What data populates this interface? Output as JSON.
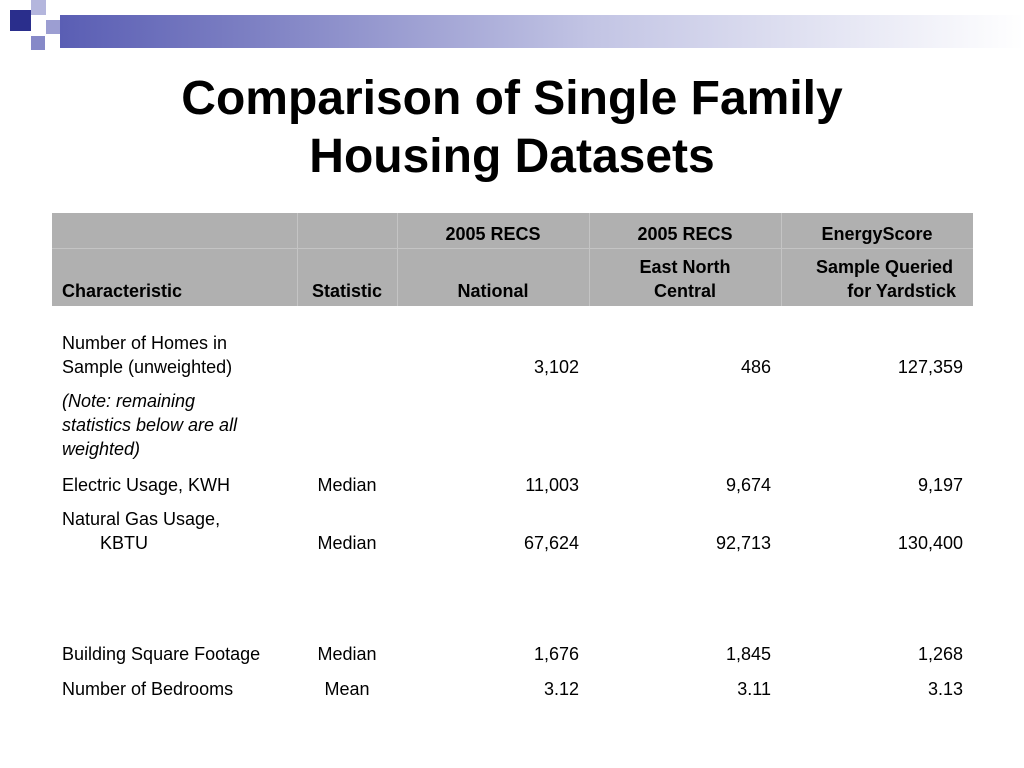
{
  "title": {
    "line1": "Comparison of Single Family",
    "line2": "Housing Datasets"
  },
  "header": {
    "top": [
      "",
      "",
      "2005 RECS",
      "2005 RECS",
      "EnergyScore"
    ],
    "characteristic": "Characteristic",
    "statistic": "Statistic",
    "col_national": "National",
    "col_enc_line1": "East North",
    "col_enc_line2": "Central",
    "col_es_line1": "Sample Queried",
    "col_es_line2": "for Yardstick"
  },
  "rows": [
    {
      "char_line1": "Number of Homes in",
      "char_line2": "Sample (unweighted)",
      "statistic": "",
      "national": "3,102",
      "enc": "486",
      "es": "127,359"
    },
    {
      "note_line1": "(Note: remaining",
      "note_line2": "statistics below are all",
      "note_line3": "weighted)"
    },
    {
      "char_line1": "Electric Usage, KWH",
      "statistic": "Median",
      "national": "11,003",
      "enc": "9,674",
      "es": "9,197"
    },
    {
      "char_line1": "Natural Gas Usage,",
      "char_line2": "KBTU",
      "statistic": "Median",
      "national": "67,624",
      "enc": "92,713",
      "es": "130,400"
    },
    {
      "char_line1": "Building Square Footage",
      "statistic": "Median",
      "national": "1,676",
      "enc": "1,845",
      "es": "1,268"
    },
    {
      "char_line1": "Number of Bedrooms",
      "statistic": "Mean",
      "national": "3.12",
      "enc": "3.11",
      "es": "3.13"
    }
  ],
  "colors": {
    "header_bg": "#b0b0b0",
    "accent_dark": "#4b4fa8",
    "accent_light": "#a8aad8"
  }
}
